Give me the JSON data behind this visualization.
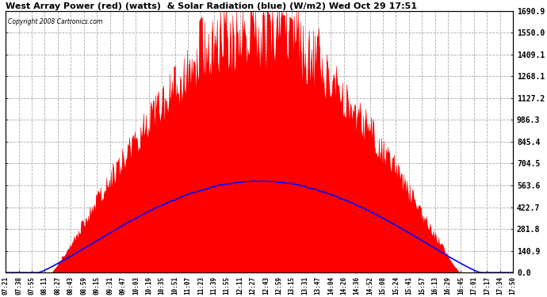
{
  "title": "West Array Power (red) (watts)  & Solar Radiation (blue) (W/m2) Wed Oct 29 17:51",
  "copyright": "Copyright 2008 Cartronics.com",
  "background_color": "#ffffff",
  "plot_bg_color": "#ffffff",
  "grid_color": "#aaaaaa",
  "x_tick_labels": [
    "07:21",
    "07:38",
    "07:55",
    "08:11",
    "08:27",
    "08:43",
    "08:59",
    "09:15",
    "09:31",
    "09:47",
    "10:03",
    "10:19",
    "10:35",
    "10:51",
    "11:07",
    "11:23",
    "11:39",
    "11:55",
    "12:11",
    "12:27",
    "12:43",
    "12:59",
    "13:15",
    "13:31",
    "13:47",
    "14:04",
    "14:20",
    "14:36",
    "14:52",
    "15:08",
    "15:24",
    "15:41",
    "15:57",
    "16:13",
    "16:29",
    "16:45",
    "17:01",
    "17:17",
    "17:34",
    "17:50"
  ],
  "y_right_ticks": [
    0.0,
    140.9,
    281.8,
    422.7,
    563.6,
    704.5,
    845.4,
    986.3,
    1127.2,
    1268.1,
    1409.1,
    1550.0,
    1690.9
  ],
  "y_max": 1690.9,
  "y_min": 0.0,
  "power_max": 1690.9,
  "solar_peak": 590.0,
  "n_points": 580
}
